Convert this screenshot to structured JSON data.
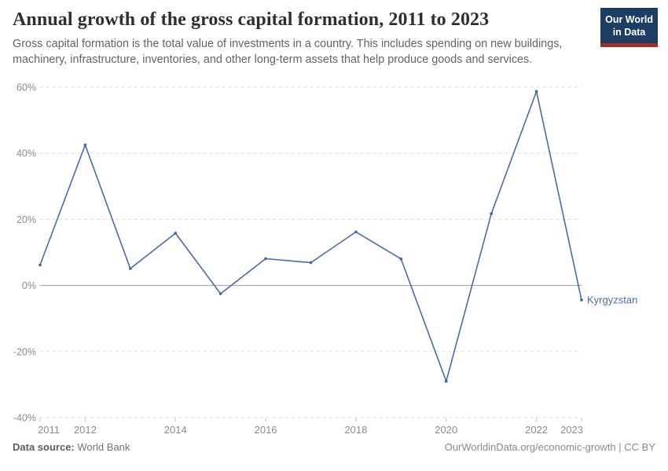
{
  "header": {
    "title": "Annual growth of the gross capital formation, 2011 to 2023",
    "subtitle": "Gross capital formation is the total value of investments in a country. This includes spending on new buildings, machinery, infrastructure, inventories, and other long-term assets that help produce goods and services."
  },
  "logo": {
    "line1": "Our World",
    "line2": "in Data",
    "bg_color": "#1d3d63",
    "accent_color": "#a32c27"
  },
  "chart_data": {
    "type": "line",
    "title": "Annual growth of the gross capital formation, 2011 to 2023",
    "xlabel": "",
    "ylabel": "",
    "x": [
      2011,
      2012,
      2013,
      2014,
      2015,
      2016,
      2017,
      2018,
      2019,
      2020,
      2021,
      2022,
      2023
    ],
    "series": [
      {
        "name": "Kyrgyzstan",
        "color": "#4a6aab",
        "values": [
          6.2,
          42.5,
          5.1,
          15.8,
          -2.5,
          8.1,
          6.9,
          16.2,
          8.0,
          -29.0,
          21.7,
          58.7,
          -4.4
        ]
      }
    ],
    "ylim": [
      -40,
      60
    ],
    "y_ticks": [
      60,
      40,
      20,
      0,
      -20,
      -40
    ],
    "y_tick_suffix": "%",
    "x_ticks": [
      2011,
      2012,
      2014,
      2016,
      2018,
      2020,
      2022,
      2023
    ],
    "grid": "horizontal-dashed",
    "legend_position": "end-of-line-label",
    "entity_label": "Kyrgyzstan"
  },
  "footer": {
    "source_label": "Data source:",
    "source_value": "World Bank",
    "right_text": "OurWorldinData.org/economic-growth | CC BY"
  }
}
